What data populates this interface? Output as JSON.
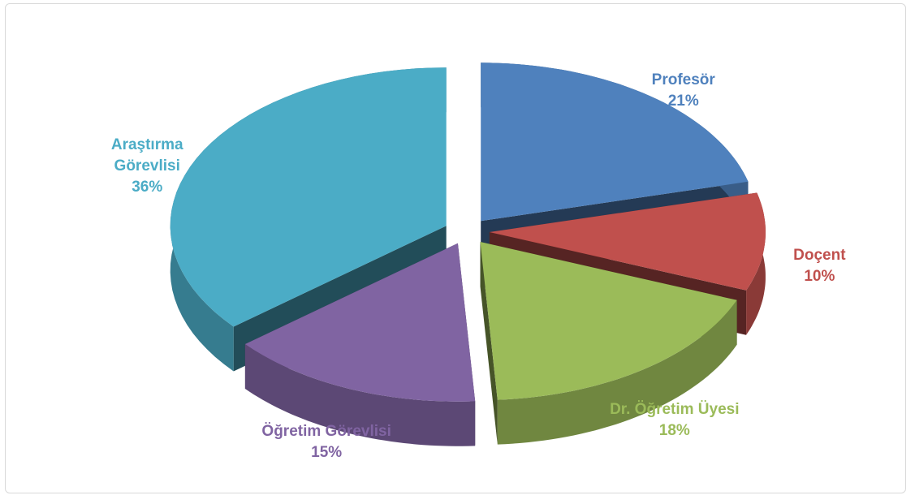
{
  "chart_data": {
    "type": "pie",
    "categories": [
      "Profesör",
      "Doçent",
      "Dr. Öğretim Üyesi",
      "Öğretim Görevlisi",
      "Araştırma Görevlisi"
    ],
    "values": [
      21,
      10,
      18,
      15,
      36
    ],
    "value_labels": [
      "21%",
      "10%",
      "18%",
      "15%",
      "36%"
    ],
    "colors": [
      "#4f81bd",
      "#c0504d",
      "#9bbb59",
      "#8064a2",
      "#4bacc6"
    ]
  }
}
